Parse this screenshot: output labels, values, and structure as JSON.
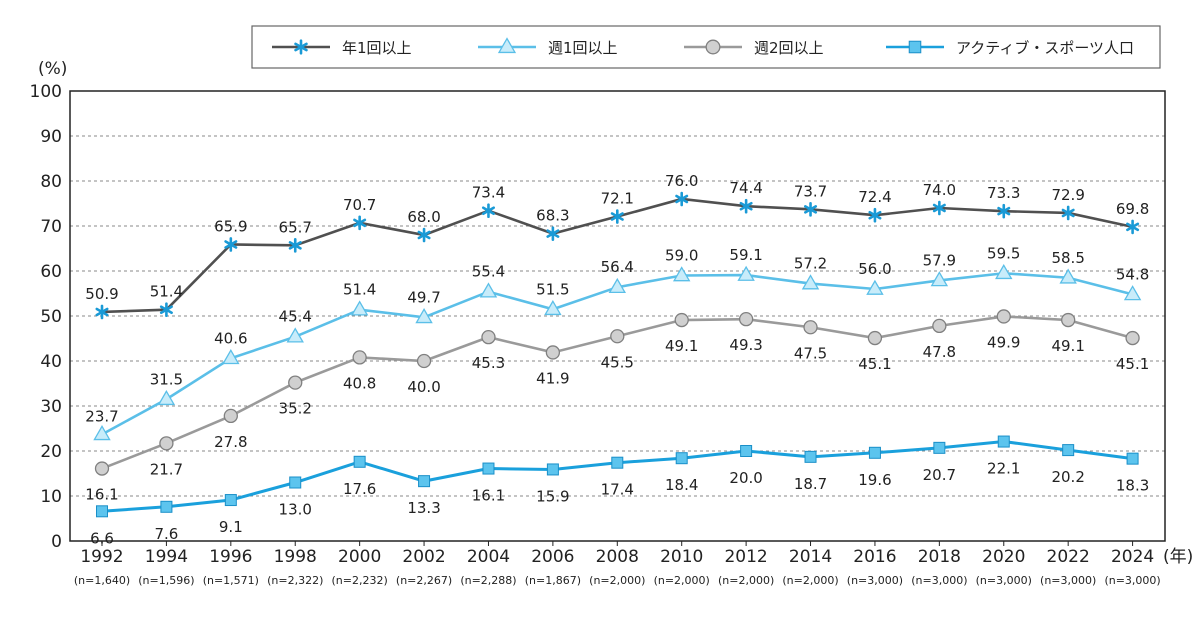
{
  "chart_data": {
    "type": "line",
    "x": [
      "1992",
      "1994",
      "1996",
      "1998",
      "2000",
      "2002",
      "2004",
      "2006",
      "2008",
      "2010",
      "2012",
      "2014",
      "2016",
      "2018",
      "2020",
      "2022",
      "2024"
    ],
    "n_labels": [
      "(n=1,640)",
      "(n=1,596)",
      "(n=1,571)",
      "(n=2,322)",
      "(n=2,232)",
      "(n=2,267)",
      "(n=2,288)",
      "(n=1,867)",
      "(n=2,000)",
      "(n=2,000)",
      "(n=2,000)",
      "(n=2,000)",
      "(n=3,000)",
      "(n=3,000)",
      "(n=3,000)",
      "(n=3,000)",
      "(n=3,000)"
    ],
    "y_unit": "(%)",
    "x_unit": "(年)",
    "ylim": [
      0,
      100
    ],
    "yticks": [
      0,
      10,
      20,
      30,
      40,
      50,
      60,
      70,
      80,
      90,
      100
    ],
    "grid": true,
    "legend_position": "top-right",
    "series": [
      {
        "name": "年1回以上",
        "color": "#505050",
        "marker": "asterisk",
        "values": [
          50.9,
          51.4,
          65.9,
          65.7,
          70.7,
          68.0,
          73.4,
          68.3,
          72.1,
          76.0,
          74.4,
          73.7,
          72.4,
          74.0,
          73.3,
          72.9,
          69.8
        ],
        "labels": [
          "50.9",
          "51.4",
          "65.9",
          "65.7",
          "70.7",
          "68.0",
          "73.4",
          "68.3",
          "72.1",
          "76.0",
          "74.4",
          "73.7",
          "72.4",
          "74.0",
          "73.3",
          "72.9",
          "69.8"
        ]
      },
      {
        "name": "週1回以上",
        "color": "#5bbfe8",
        "marker": "triangle",
        "values": [
          23.7,
          31.5,
          40.6,
          45.4,
          51.4,
          49.7,
          55.4,
          51.5,
          56.4,
          59.0,
          59.1,
          57.2,
          56.0,
          57.9,
          59.5,
          58.5,
          54.8
        ],
        "labels": [
          "23.7",
          "31.5",
          "40.6",
          "45.4",
          "51.4",
          "49.7",
          "55.4",
          "51.5",
          "56.4",
          "59.0",
          "59.1",
          "57.2",
          "56.0",
          "57.9",
          "59.5",
          "58.5",
          "54.8"
        ]
      },
      {
        "name": "週2回以上",
        "color": "#9a9a9a",
        "marker": "circle",
        "values": [
          16.1,
          21.7,
          27.8,
          35.2,
          40.8,
          40.0,
          45.3,
          41.9,
          45.5,
          49.1,
          49.3,
          47.5,
          45.1,
          47.8,
          49.9,
          49.1,
          45.1
        ],
        "labels": [
          "16.1",
          "21.7",
          "27.8",
          "35.2",
          "40.8",
          "40.0",
          "45.3",
          "41.9",
          "45.5",
          "49.1",
          "49.3",
          "47.5",
          "45.1",
          "47.8",
          "49.9",
          "49.1",
          "45.1"
        ]
      },
      {
        "name": "アクティブ・スポーツ人口",
        "color": "#1aa0dc",
        "marker": "square",
        "values": [
          6.6,
          7.6,
          9.1,
          13.0,
          17.6,
          13.3,
          16.1,
          15.9,
          17.4,
          18.4,
          20.0,
          18.7,
          19.6,
          20.7,
          22.1,
          20.2,
          18.3
        ],
        "labels": [
          "6.6",
          "7.6",
          "9.1",
          "13.0",
          "17.6",
          "13.3",
          "16.1",
          "15.9",
          "17.4",
          "18.4",
          "20.0",
          "18.7",
          "19.6",
          "20.7",
          "22.1",
          "20.2",
          "18.3"
        ]
      }
    ]
  }
}
